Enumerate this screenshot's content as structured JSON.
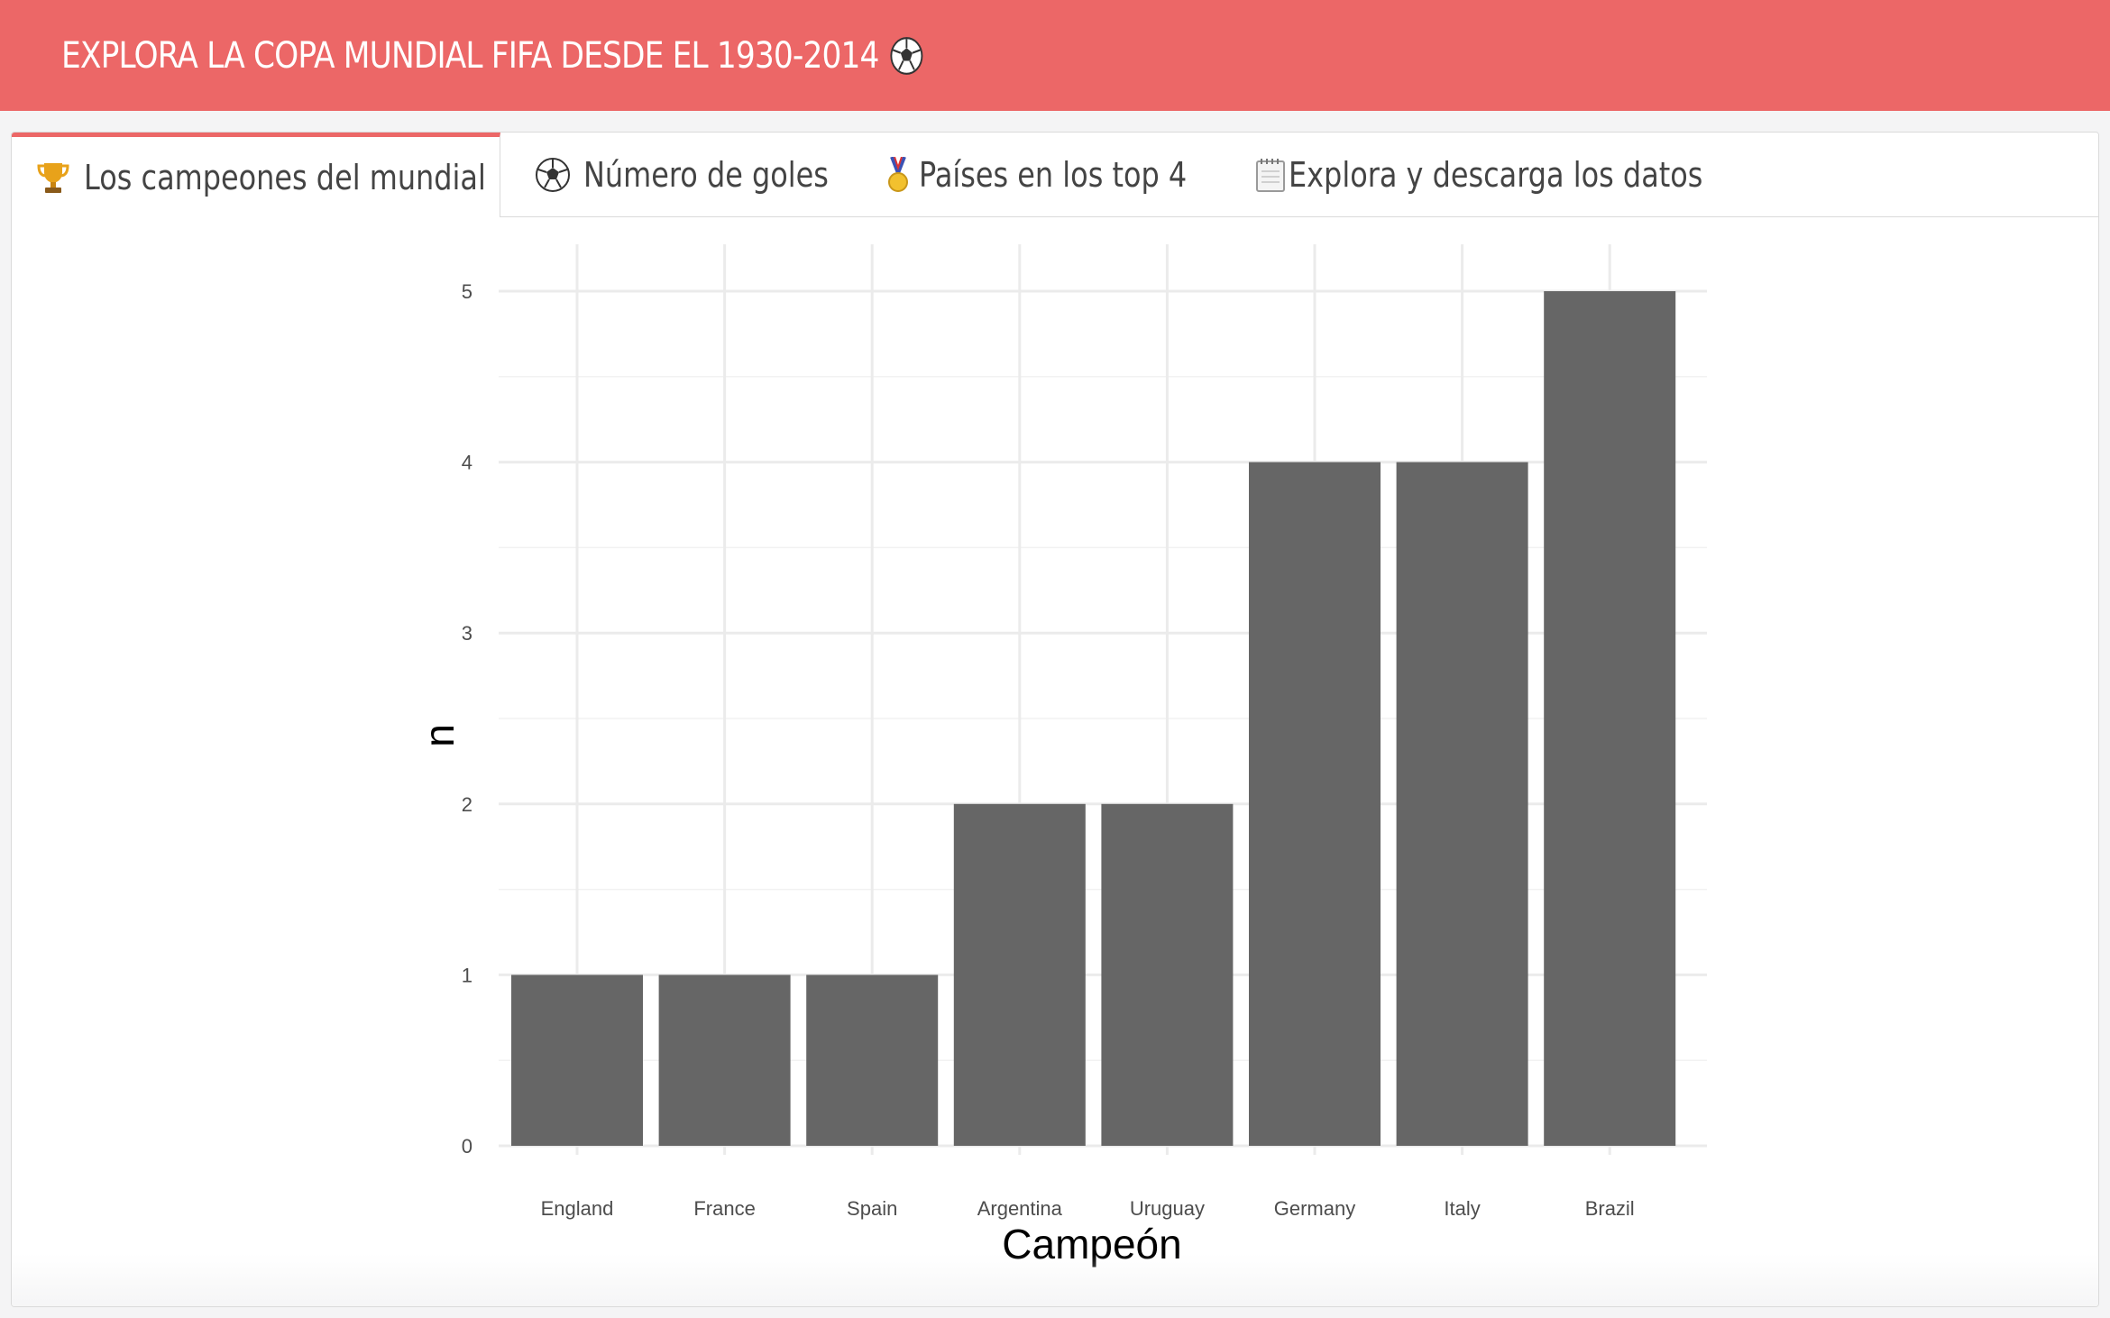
{
  "header": {
    "title": "EXPLORA LA COPA MUNDIAL FIFA DESDE EL 1930-2014",
    "title_icon": "soccer-ball-icon"
  },
  "tabs": [
    {
      "label": "Los campeones del mundial",
      "icon": "trophy-icon",
      "active": true
    },
    {
      "label": "Número de goles",
      "icon": "soccer-ball-icon",
      "active": false
    },
    {
      "label": "Países en los top 4",
      "icon": "medal-icon",
      "active": false
    },
    {
      "label": "Explora y descarga los datos",
      "icon": "notepad-icon",
      "active": false
    }
  ],
  "colors": {
    "header_bg": "#ec6767",
    "active_tab_accent": "#ec6767",
    "bar_fill": "#666666",
    "grid": "#ebebeb"
  },
  "chart_data": {
    "type": "bar",
    "categories": [
      "England",
      "France",
      "Spain",
      "Argentina",
      "Uruguay",
      "Germany",
      "Italy",
      "Brazil"
    ],
    "values": [
      1,
      1,
      1,
      2,
      2,
      4,
      4,
      5
    ],
    "xlabel": "Campeón",
    "ylabel": "n",
    "ylim": [
      0,
      5
    ],
    "yticks": [
      0,
      1,
      2,
      3,
      4,
      5
    ],
    "grid": true
  }
}
